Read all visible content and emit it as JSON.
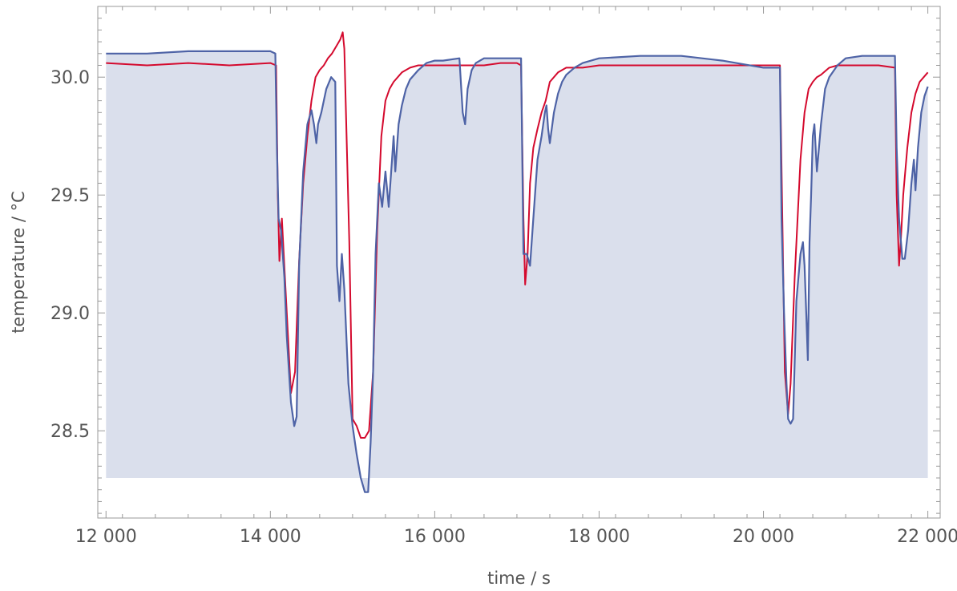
{
  "chart_data": {
    "type": "line",
    "xlabel": "time / s",
    "ylabel": "temperature / °C",
    "xlim": [
      11900,
      22150
    ],
    "ylim": [
      28.13,
      30.3
    ],
    "x_ticks": [
      12000,
      14000,
      16000,
      18000,
      20000,
      22000
    ],
    "x_tick_labels": [
      "12 000",
      "14 000",
      "16 000",
      "18 000",
      "20 000",
      "22 000"
    ],
    "y_ticks": [
      28.5,
      29.0,
      29.5,
      30.0
    ],
    "y_tick_labels": [
      "28.5",
      "29.0",
      "29.5",
      "30.0"
    ],
    "fill_baseline": 28.3,
    "colors": {
      "measured": "#d40a2e",
      "model": "#4e63a6",
      "fill": "#dadfec"
    },
    "series": [
      {
        "key": "measured",
        "x": [
          12000,
          12500,
          13000,
          13500,
          14000,
          14070,
          14090,
          14110,
          14140,
          14200,
          14250,
          14300,
          14350,
          14400,
          14450,
          14500,
          14550,
          14600,
          14650,
          14700,
          14750,
          14800,
          14850,
          14880,
          14900,
          14960,
          15000,
          15050,
          15100,
          15150,
          15200,
          15250,
          15300,
          15350,
          15400,
          15450,
          15500,
          15600,
          15700,
          15800,
          15900,
          16000,
          16200,
          16400,
          16600,
          16800,
          17000,
          17050,
          17080,
          17100,
          17130,
          17160,
          17200,
          17250,
          17300,
          17350,
          17400,
          17500,
          17600,
          17800,
          18000,
          18500,
          19000,
          19500,
          20000,
          20150,
          20200,
          20230,
          20260,
          20300,
          20330,
          20380,
          20450,
          20500,
          20550,
          20600,
          20650,
          20700,
          20800,
          20900,
          21000,
          21200,
          21400,
          21600,
          21620,
          21650,
          21670,
          21700,
          21750,
          21800,
          21850,
          21900,
          21950,
          22000
        ],
        "y": [
          30.06,
          30.05,
          30.06,
          30.05,
          30.06,
          30.05,
          29.5,
          29.22,
          29.4,
          29.0,
          28.66,
          28.75,
          29.22,
          29.55,
          29.75,
          29.9,
          30.0,
          30.03,
          30.05,
          30.08,
          30.1,
          30.13,
          30.16,
          30.19,
          30.12,
          29.3,
          28.55,
          28.52,
          28.47,
          28.47,
          28.5,
          28.75,
          29.35,
          29.75,
          29.9,
          29.95,
          29.98,
          30.02,
          30.04,
          30.05,
          30.05,
          30.05,
          30.05,
          30.05,
          30.05,
          30.06,
          30.06,
          30.05,
          29.4,
          29.12,
          29.25,
          29.55,
          29.7,
          29.78,
          29.85,
          29.9,
          29.98,
          30.02,
          30.04,
          30.04,
          30.05,
          30.05,
          30.05,
          30.05,
          30.05,
          30.05,
          30.05,
          29.4,
          28.75,
          28.57,
          28.7,
          29.15,
          29.65,
          29.85,
          29.95,
          29.98,
          30.0,
          30.01,
          30.04,
          30.05,
          30.05,
          30.05,
          30.05,
          30.04,
          29.5,
          29.2,
          29.3,
          29.5,
          29.7,
          29.85,
          29.93,
          29.98,
          30.0,
          30.02
        ]
      },
      {
        "key": "model",
        "x": [
          12000,
          12500,
          13000,
          13500,
          14000,
          14060,
          14080,
          14100,
          14130,
          14170,
          14200,
          14250,
          14290,
          14320,
          14350,
          14400,
          14450,
          14500,
          14530,
          14560,
          14580,
          14620,
          14680,
          14740,
          14790,
          14810,
          14840,
          14870,
          14900,
          14950,
          15000,
          15050,
          15100,
          15150,
          15190,
          15220,
          15250,
          15280,
          15320,
          15360,
          15400,
          15440,
          15480,
          15500,
          15520,
          15560,
          15600,
          15650,
          15700,
          15800,
          15900,
          16000,
          16100,
          16300,
          16340,
          16370,
          16400,
          16450,
          16500,
          16600,
          16800,
          17000,
          17050,
          17080,
          17120,
          17160,
          17200,
          17250,
          17300,
          17340,
          17360,
          17380,
          17400,
          17450,
          17500,
          17550,
          17600,
          17700,
          17800,
          18000,
          18500,
          19000,
          19500,
          20000,
          20150,
          20200,
          20220,
          20250,
          20280,
          20300,
          20330,
          20360,
          20400,
          20450,
          20480,
          20500,
          20520,
          20540,
          20560,
          20580,
          20600,
          20620,
          20650,
          20700,
          20750,
          20800,
          20900,
          21000,
          21200,
          21400,
          21600,
          21620,
          21650,
          21690,
          21720,
          21760,
          21800,
          21830,
          21850,
          21880,
          21920,
          21960,
          22000
        ],
        "y": [
          30.1,
          30.1,
          30.11,
          30.11,
          30.11,
          30.1,
          29.7,
          29.4,
          29.35,
          29.15,
          28.9,
          28.62,
          28.52,
          28.56,
          29.2,
          29.6,
          29.8,
          29.86,
          29.8,
          29.72,
          29.8,
          29.85,
          29.95,
          30.0,
          29.98,
          29.2,
          29.05,
          29.25,
          29.1,
          28.7,
          28.52,
          28.4,
          28.3,
          28.24,
          28.24,
          28.45,
          28.75,
          29.25,
          29.55,
          29.45,
          29.6,
          29.45,
          29.65,
          29.75,
          29.6,
          29.8,
          29.88,
          29.95,
          29.99,
          30.03,
          30.06,
          30.07,
          30.07,
          30.08,
          29.85,
          29.8,
          29.95,
          30.03,
          30.06,
          30.08,
          30.08,
          30.08,
          30.08,
          29.25,
          29.25,
          29.2,
          29.4,
          29.65,
          29.75,
          29.85,
          29.88,
          29.78,
          29.72,
          29.85,
          29.93,
          29.98,
          30.01,
          30.04,
          30.06,
          30.08,
          30.09,
          30.09,
          30.07,
          30.04,
          30.04,
          30.04,
          29.4,
          29.0,
          28.7,
          28.55,
          28.53,
          28.55,
          29.05,
          29.25,
          29.3,
          29.2,
          29.0,
          28.8,
          29.3,
          29.5,
          29.75,
          29.8,
          29.6,
          29.8,
          29.95,
          30.0,
          30.05,
          30.08,
          30.09,
          30.09,
          30.09,
          29.7,
          29.4,
          29.23,
          29.23,
          29.35,
          29.55,
          29.65,
          29.52,
          29.7,
          29.85,
          29.92,
          29.96
        ]
      }
    ]
  }
}
